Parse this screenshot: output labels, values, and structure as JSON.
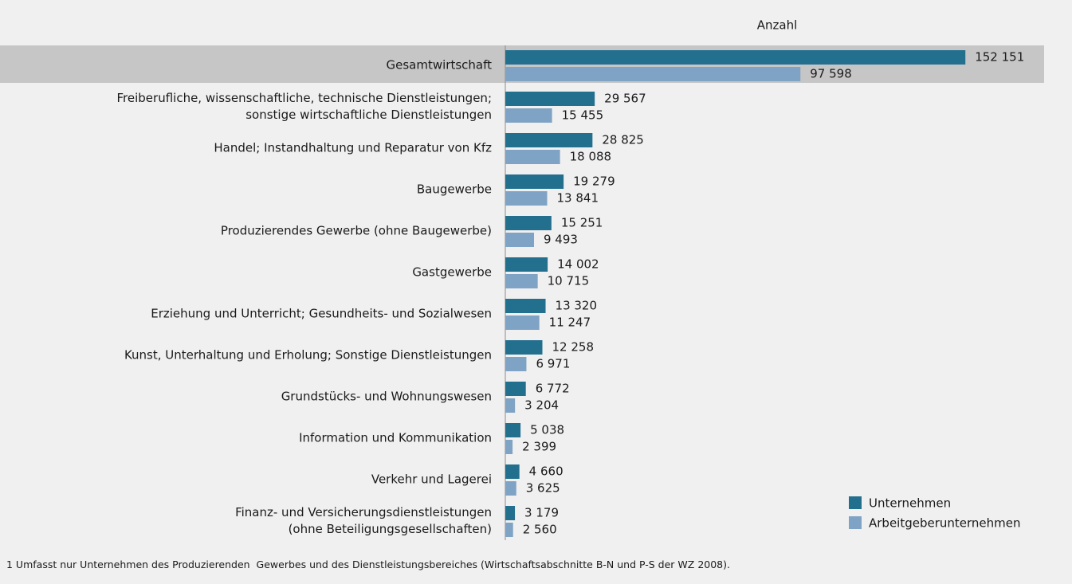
{
  "chart_data": {
    "type": "bar",
    "orientation": "horizontal",
    "title": "Anzahl",
    "categories": [
      "Gesamtwirtschaft",
      "Freiberufliche, wissenschaftliche, technische Dienstleistungen;\nsonstige wirtschaftliche Dienstleistungen",
      "Handel; Instandhaltung und Reparatur von Kfz",
      "Baugewerbe",
      "Produzierendes Gewerbe (ohne Baugewerbe)",
      "Gastgewerbe",
      "Erziehung und Unterricht; Gesundheits- und Sozialwesen",
      "Kunst, Unterhaltung und Erholung; Sonstige Dienstleistungen",
      "Grundstücks- und Wohnungswesen",
      "Information und Kommunikation",
      "Verkehr und Lagerei",
      "Finanz- und Versicherungsdienstleistungen\n(ohne Beteiligungsgesellschaften)"
    ],
    "series": [
      {
        "name": "Unternehmen",
        "color": "#236f8e",
        "values": [
          152151,
          29567,
          28825,
          19279,
          15251,
          14002,
          13320,
          12258,
          6772,
          5038,
          4660,
          3179
        ],
        "value_labels": [
          "152 151",
          "29 567",
          "28 825",
          "19 279",
          "15 251",
          "14 002",
          "13 320",
          "12 258",
          "6 772",
          "5 038",
          "4 660",
          "3 179"
        ]
      },
      {
        "name": "Arbeitgeberunternehmen",
        "color": "#7fa3c4",
        "values": [
          97598,
          15455,
          18088,
          13841,
          9493,
          10715,
          11247,
          6971,
          3204,
          2399,
          3625,
          2560
        ],
        "value_labels": [
          "97 598",
          "15 455",
          "18 088",
          "13 841",
          "9 493",
          "10 715",
          "11 247",
          "6 971",
          "3 204",
          "2 399",
          "3 625",
          "2 560"
        ]
      }
    ],
    "xlim": [
      0,
      160000
    ],
    "highlight": "Gesamtwirtschaft",
    "legend": "lower right",
    "footnote": "1 Umfasst nur Unternehmen des Produzierenden  Gewerbes und des Dienstleistungsbereiches (Wirtschaftsabschnitte B-N und P-S der WZ 2008)."
  }
}
